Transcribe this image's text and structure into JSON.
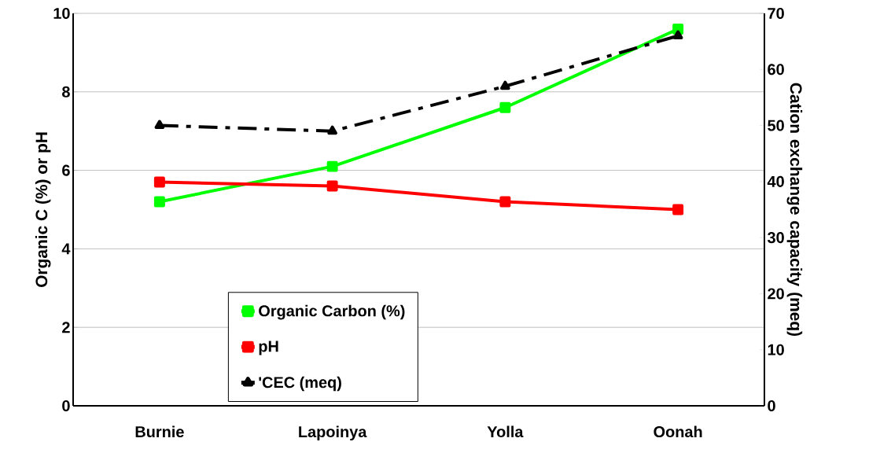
{
  "chart_data": {
    "type": "line",
    "categories": [
      "Burnie",
      "Lapoinya",
      "Yolla",
      "Oonah"
    ],
    "ylabel": "Organic C (%)  or pH",
    "y2label": "Cation exchange capacity (meq)",
    "ylim": [
      0,
      10
    ],
    "yticks": [
      0,
      2,
      4,
      6,
      8,
      10
    ],
    "y2lim": [
      0,
      70
    ],
    "y2ticks": [
      0,
      10,
      20,
      30,
      40,
      50,
      60,
      70
    ],
    "grid": "y",
    "legend": "bottom",
    "series": [
      {
        "name": "Organic Carbon (%)",
        "color": "#00ff00",
        "values": [
          5.2,
          6.1,
          7.6,
          9.6
        ],
        "marker": "square",
        "line_style": "solid"
      },
      {
        "name": "pH",
        "color": "#ff0000",
        "values": [
          5.7,
          5.6,
          5.2,
          5.0
        ],
        "marker": "square",
        "line_style": "solid"
      },
      {
        "name": "'CEC (meq)",
        "color": "#000000",
        "values": [
          50,
          49,
          57,
          66
        ],
        "marker": "triangle",
        "line_style": "dashed",
        "axis": "y2"
      }
    ]
  }
}
